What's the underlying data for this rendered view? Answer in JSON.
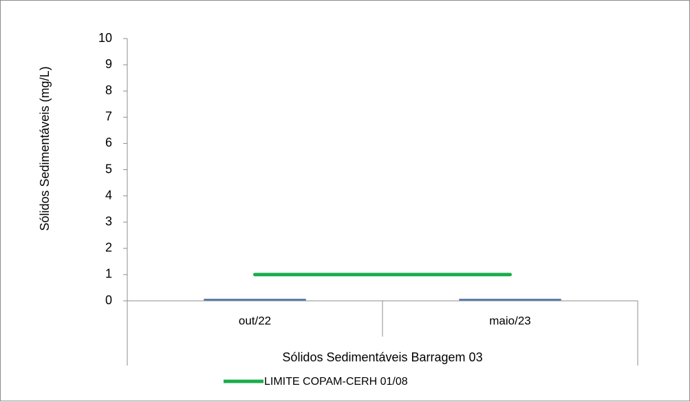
{
  "chart_data": {
    "type": "bar",
    "ylabel": "Sólidos Sedimentáveis  (mg/L)",
    "group_label": "Sólidos Sedimentáveis Barragem 03",
    "categories": [
      "out/22",
      "maio/23"
    ],
    "ylim": [
      0,
      10
    ],
    "yticks": [
      "0",
      "1",
      "2",
      "3",
      "4",
      "5",
      "6",
      "7",
      "8",
      "9",
      "10"
    ],
    "series": [
      {
        "values": [
          0.05,
          0.05
        ],
        "kind": "bar",
        "color": "#5b7fa8"
      },
      {
        "name": "LIMITE COPAM-CERH 01/08",
        "values": [
          1,
          1
        ],
        "kind": "line",
        "color": "#1aab4b"
      }
    ],
    "legend": "bottom",
    "grid": false
  }
}
